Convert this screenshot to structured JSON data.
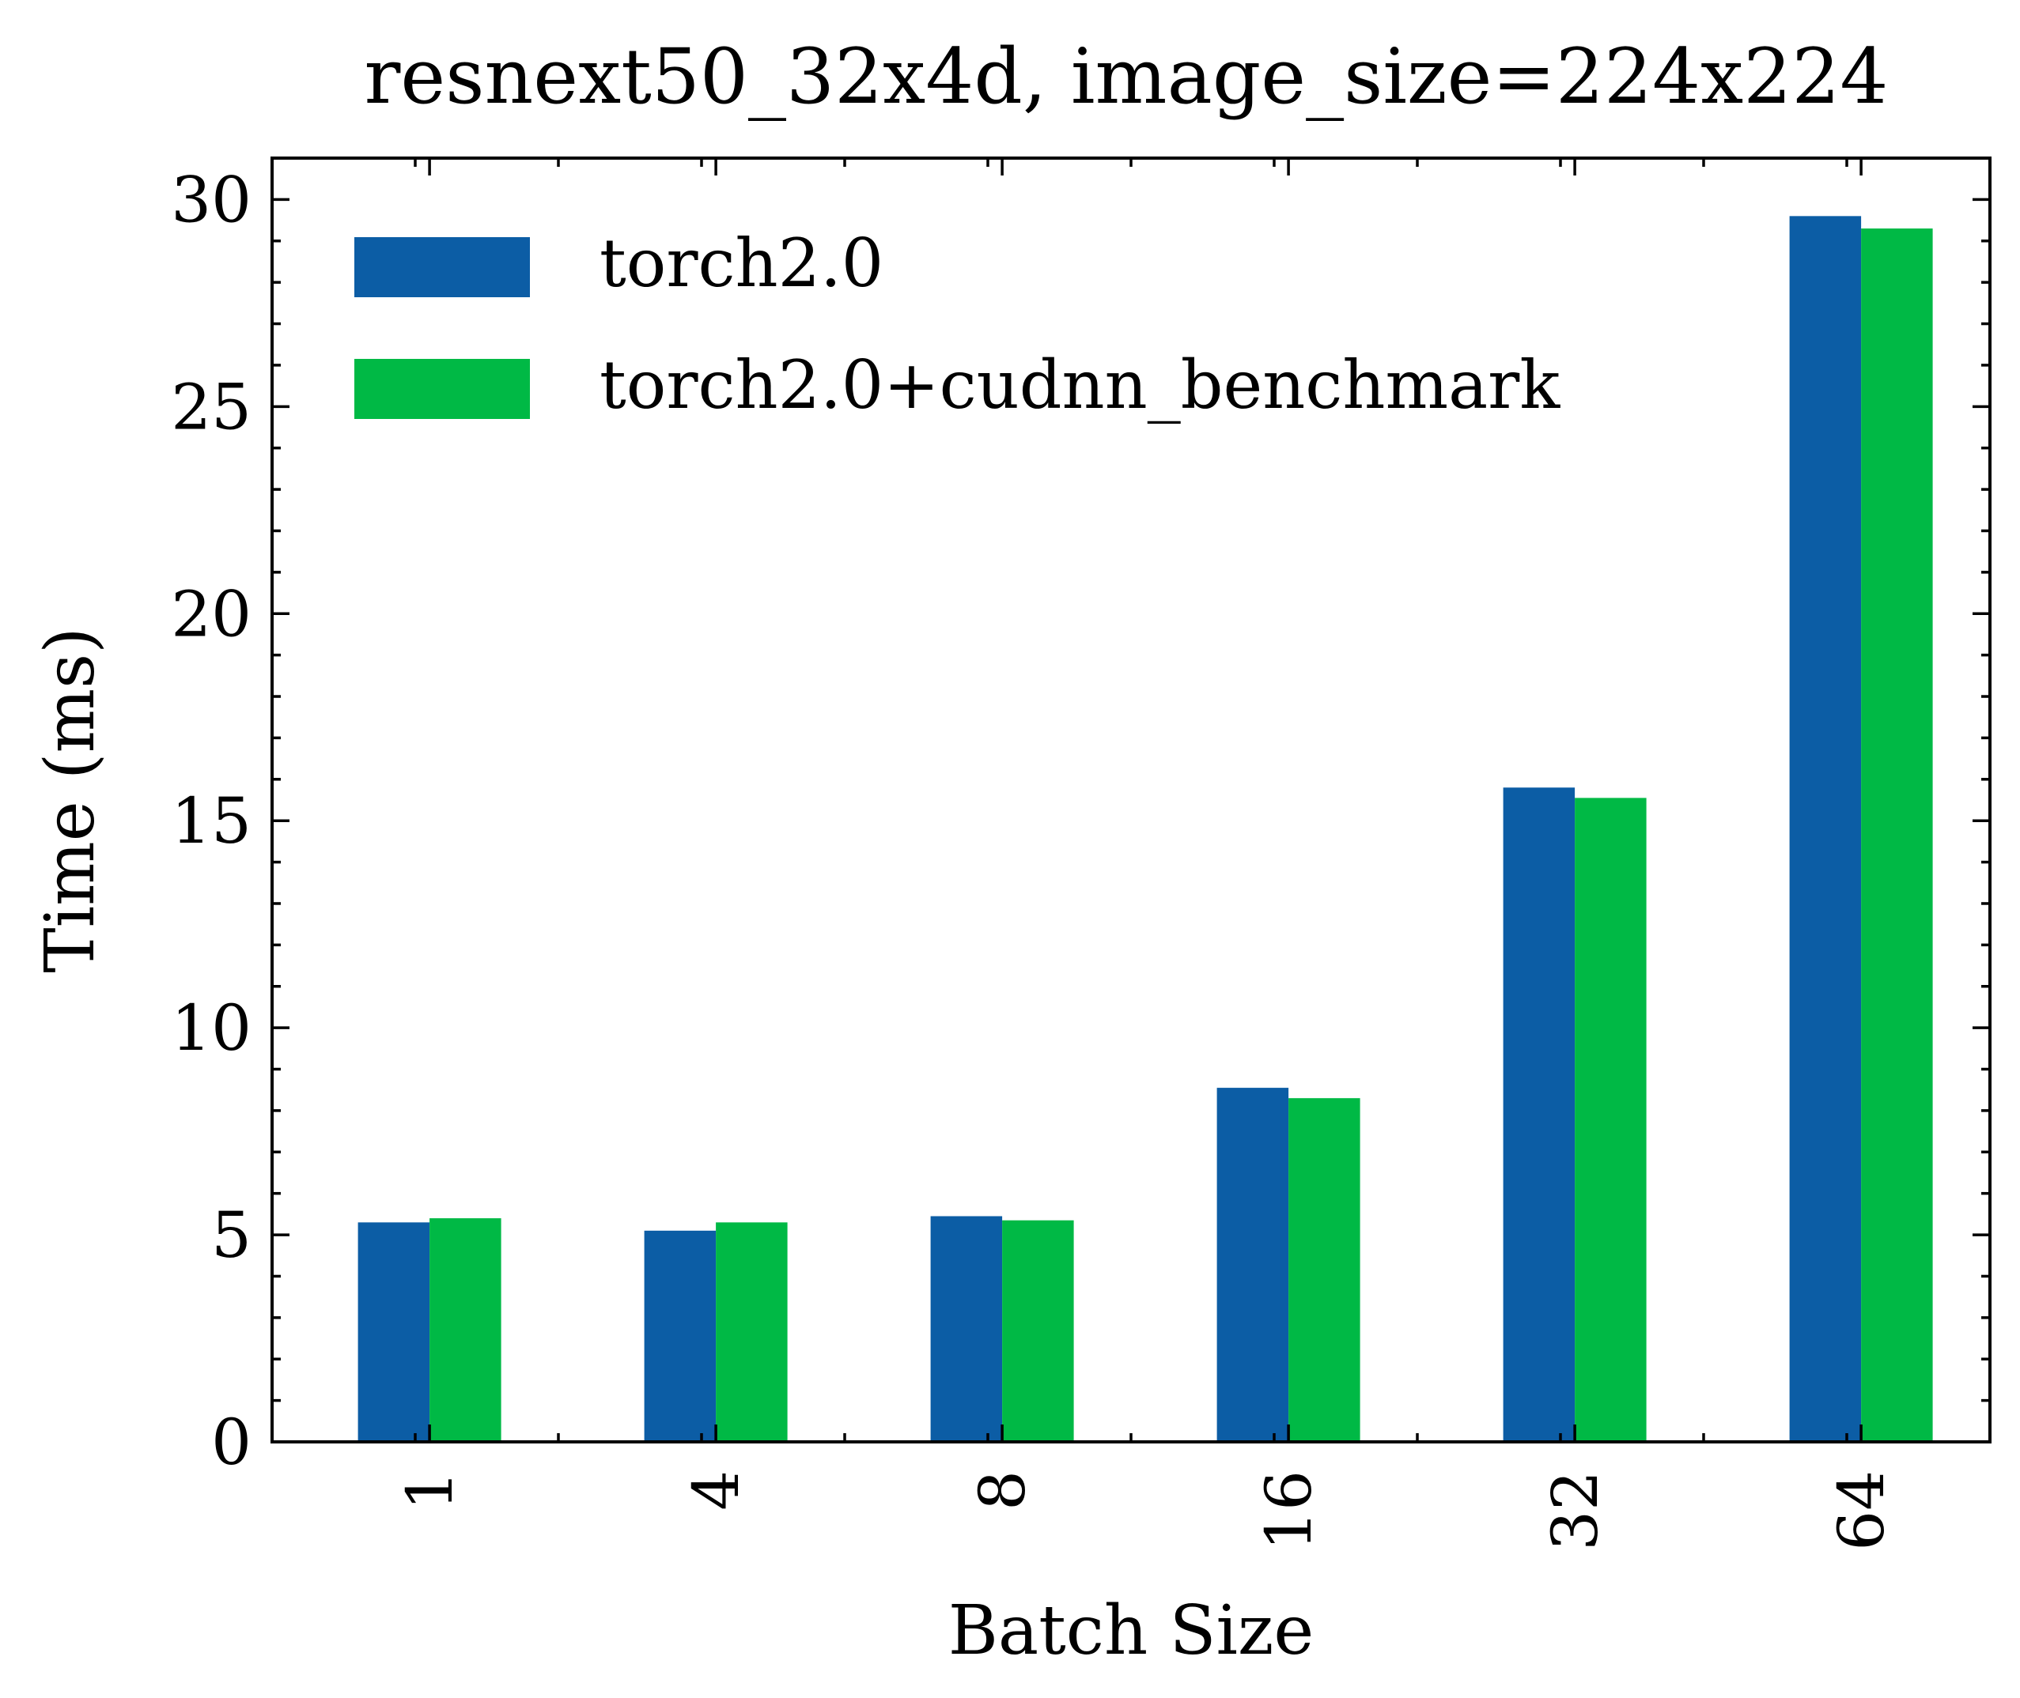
{
  "chart_data": {
    "type": "bar",
    "title": "resnext50_32x4d, image_size=224x224",
    "xlabel": "Batch Size",
    "ylabel": "Time (ms)",
    "categories": [
      "1",
      "4",
      "8",
      "16",
      "32",
      "64"
    ],
    "series": [
      {
        "name": "torch2.0",
        "color": "#0C5DA5",
        "values": [
          5.3,
          5.1,
          5.45,
          8.55,
          15.8,
          29.6
        ]
      },
      {
        "name": "torch2.0+cudnn_benchmark",
        "color": "#00B945",
        "values": [
          5.4,
          5.3,
          5.35,
          8.3,
          15.55,
          29.3
        ]
      }
    ],
    "ylim": [
      0,
      31
    ],
    "yticks": [
      0,
      5,
      10,
      15,
      20,
      25,
      30
    ],
    "grid": false,
    "legend": "top-left"
  }
}
